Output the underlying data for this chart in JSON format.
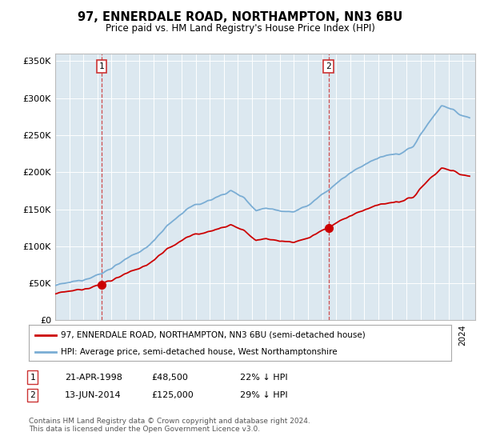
{
  "title": "97, ENNERDALE ROAD, NORTHAMPTON, NN3 6BU",
  "subtitle": "Price paid vs. HM Land Registry's House Price Index (HPI)",
  "ylabel_ticks": [
    "£0",
    "£50K",
    "£100K",
    "£150K",
    "£200K",
    "£250K",
    "£300K",
    "£350K"
  ],
  "ytick_values": [
    0,
    50000,
    100000,
    150000,
    200000,
    250000,
    300000,
    350000
  ],
  "ylim": [
    0,
    360000
  ],
  "xlim_start": 1995.0,
  "xlim_end": 2024.9,
  "sale1_year": 1998.31,
  "sale1_price": 48500,
  "sale1_label": "1",
  "sale1_date": "21-APR-1998",
  "sale1_hpi_diff": "22% ↓ HPI",
  "sale2_year": 2014.45,
  "sale2_price": 125000,
  "sale2_label": "2",
  "sale2_date": "13-JUN-2014",
  "sale2_hpi_diff": "29% ↓ HPI",
  "legend_line1": "97, ENNERDALE ROAD, NORTHAMPTON, NN3 6BU (semi-detached house)",
  "legend_line2": "HPI: Average price, semi-detached house, West Northamptonshire",
  "footnote": "Contains HM Land Registry data © Crown copyright and database right 2024.\nThis data is licensed under the Open Government Licence v3.0.",
  "line_color_price": "#cc0000",
  "line_color_hpi": "#7aadd4",
  "dashed_color": "#cc3333",
  "background_color": "#ffffff",
  "plot_bg_color": "#dce8f0"
}
